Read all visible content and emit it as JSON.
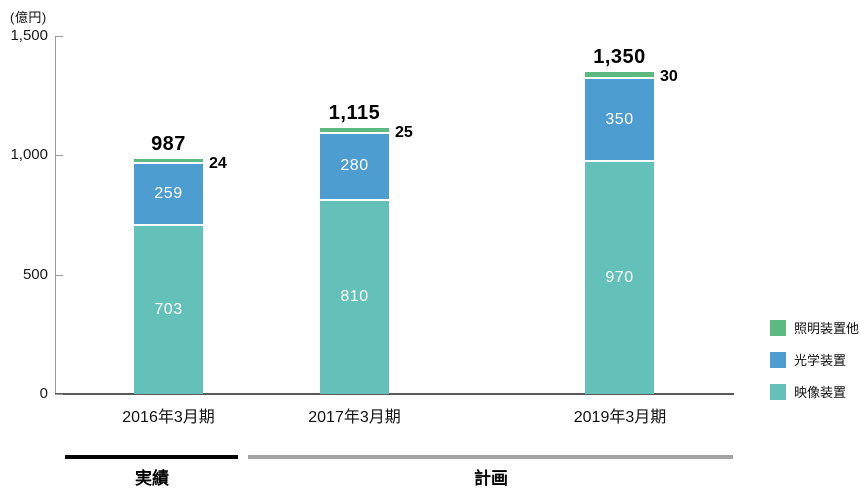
{
  "chart_data": {
    "type": "bar",
    "stacked": true,
    "unit_label": "(億円)",
    "categories": [
      "2016年3月期",
      "2017年3月期",
      "2019年3月期"
    ],
    "series": [
      {
        "name": "映像装置",
        "color": "#63c1ba",
        "values": [
          703,
          810,
          970
        ]
      },
      {
        "name": "光学装置",
        "color": "#4d9dd0",
        "values": [
          259,
          280,
          350
        ]
      },
      {
        "name": "照明装置他",
        "color": "#5cb97f",
        "values": [
          24,
          25,
          30
        ]
      }
    ],
    "totals": [
      "987",
      "1,115",
      "1,350"
    ],
    "small_segment_labels": [
      "24",
      "25",
      "30"
    ],
    "ylim": [
      0,
      1500
    ],
    "yticks": [
      {
        "label": "1,500",
        "value": 1500
      },
      {
        "label": "1,000",
        "value": 1000
      },
      {
        "label": "500",
        "value": 500
      },
      {
        "label": "0",
        "value": 0
      }
    ],
    "legend_position": "right",
    "legend_order": [
      "照明装置他",
      "光学装置",
      "映像装置"
    ],
    "grid": false,
    "period_groups": [
      {
        "label": "実績",
        "line_color": "#000000"
      },
      {
        "label": "計画",
        "line_color": "#a3a3a3"
      }
    ],
    "axis_colors": {
      "y_axis": "#999999",
      "x_axis": "#595959"
    }
  }
}
